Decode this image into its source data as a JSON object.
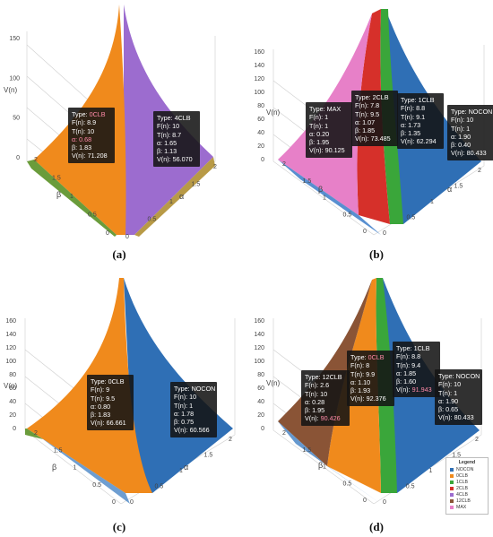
{
  "chart_data": [
    {
      "type": "surface3d",
      "panel_label": "(a)",
      "axes": {
        "z_label": "V(n)",
        "x_label": "β",
        "y_label": "α",
        "z_ticks": [
          "0",
          "50",
          "100",
          "150"
        ],
        "beta_ticks": [
          "2",
          "1.5",
          "1",
          "0.5",
          "0"
        ],
        "alpha_ticks": [
          "0",
          "0.5",
          "1",
          "1.5",
          "2"
        ]
      },
      "surfaces": [
        "0CLB",
        "4CLB"
      ],
      "tooltips": [
        {
          "type": "0CLB",
          "F": "8.9",
          "T": "10",
          "alpha": "0.68",
          "beta": "1.83",
          "V": "71.208"
        },
        {
          "type": "4CLB",
          "F": "10",
          "T": "8.7",
          "alpha": "1.65",
          "beta": "1.13",
          "V": "56.070"
        }
      ]
    },
    {
      "type": "surface3d",
      "panel_label": "(b)",
      "axes": {
        "z_label": "V(n)",
        "x_label": "β",
        "y_label": "α",
        "z_ticks": [
          "0",
          "20",
          "40",
          "60",
          "80",
          "100",
          "120",
          "140",
          "160"
        ],
        "beta_ticks": [
          "2",
          "1.5",
          "1",
          "0.5",
          "0"
        ],
        "alpha_ticks": [
          "0",
          "0.5",
          "1",
          "1.5",
          "2"
        ]
      },
      "surfaces": [
        "MAX",
        "2CLB",
        "1CLB",
        "NOCON"
      ],
      "tooltips": [
        {
          "type": "MAX",
          "F": "1",
          "T": "1",
          "alpha": "0.20",
          "beta": "1.95",
          "V": "90.125"
        },
        {
          "type": "2CLB",
          "F": "7.8",
          "T": "9.5",
          "alpha": "1.07",
          "beta": "1.85",
          "V": "73.485"
        },
        {
          "type": "1CLB",
          "F": "8.8",
          "T": "9.1",
          "alpha": "1.73",
          "beta": "1.35",
          "V": "62.294"
        },
        {
          "type": "NOCON",
          "F": "10",
          "T": "1",
          "alpha": "1.90",
          "beta": "0.40",
          "V": "80.433"
        }
      ]
    },
    {
      "type": "surface3d",
      "panel_label": "(c)",
      "axes": {
        "z_label": "V(n)",
        "x_label": "β",
        "y_label": "α",
        "z_ticks": [
          "0",
          "20",
          "40",
          "60",
          "80",
          "100",
          "120",
          "140",
          "160"
        ],
        "beta_ticks": [
          "2",
          "1.5",
          "1",
          "0.5",
          "0"
        ],
        "alpha_ticks": [
          "0",
          "0.5",
          "1",
          "1.5",
          "2"
        ]
      },
      "surfaces": [
        "0CLB",
        "NOCON"
      ],
      "tooltips": [
        {
          "type": "0CLB",
          "F": "9",
          "T": "9.5",
          "alpha": "0.80",
          "beta": "1.83",
          "V": "66.661"
        },
        {
          "type": "NOCON",
          "F": "10",
          "T": "1",
          "alpha": "1.78",
          "beta": "0.75",
          "V": "60.566"
        }
      ]
    },
    {
      "type": "surface3d",
      "panel_label": "(d)",
      "axes": {
        "z_label": "V(n)",
        "x_label": "β",
        "y_label": "α",
        "z_ticks": [
          "0",
          "20",
          "40",
          "60",
          "80",
          "100",
          "120",
          "140",
          "160"
        ],
        "beta_ticks": [
          "2",
          "1.5",
          "1",
          "0.5",
          "0"
        ],
        "alpha_ticks": [
          "0",
          "0.5",
          "1",
          "1.5",
          "2"
        ]
      },
      "surfaces": [
        "12CLB",
        "0CLB",
        "1CLB",
        "NOCON"
      ],
      "tooltips": [
        {
          "type": "12CLB",
          "F": "2.6",
          "T": "10",
          "alpha": "0.28",
          "beta": "1.95",
          "V": "90.426"
        },
        {
          "type": "0CLB",
          "F": "8",
          "T": "9.9",
          "alpha": "1.10",
          "beta": "1.93",
          "V": "92.376"
        },
        {
          "type": "1CLB",
          "F": "8.8",
          "T": "9.4",
          "alpha": "1.85",
          "beta": "1.60",
          "V": "91.943"
        },
        {
          "type": "NOCON",
          "F": "10",
          "T": "1",
          "alpha": "1.90",
          "beta": "0.65",
          "V": "80.433"
        }
      ]
    }
  ],
  "legend": {
    "title": "Legend",
    "items": [
      {
        "label": "NOCON",
        "color": "#2f6fb5"
      },
      {
        "label": "0CLB",
        "color": "#f08a1c"
      },
      {
        "label": "1CLB",
        "color": "#3aa63a"
      },
      {
        "label": "2CLB",
        "color": "#d6302a"
      },
      {
        "label": "4CLB",
        "color": "#9c6ccf"
      },
      {
        "label": "12CLB",
        "color": "#8a5436"
      },
      {
        "label": "MAX",
        "color": "#e780c8"
      }
    ]
  },
  "tooltip_labels": {
    "type": "Type:",
    "F": "F(n):",
    "T": "T(n):",
    "alpha": "α:",
    "beta": "β:",
    "V": "V(n):"
  }
}
